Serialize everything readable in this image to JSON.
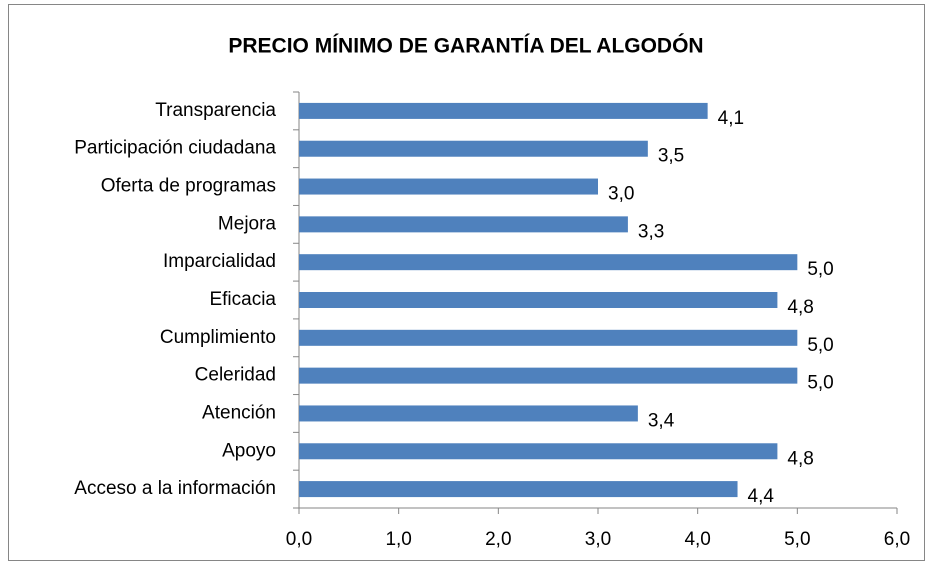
{
  "chart_data": {
    "type": "hbar",
    "title": "PRECIO MÍNIMO DE GARANTÍA  DEL ALGODÓN",
    "categories": [
      "Transparencia",
      "Participación ciudadana",
      "Oferta de programas",
      "Mejora",
      "Imparcialidad",
      "Eficacia",
      "Cumplimiento",
      "Celeridad",
      "Atención",
      "Apoyo",
      "Acceso a la información"
    ],
    "values": [
      4.1,
      3.5,
      3.0,
      3.3,
      5.0,
      4.8,
      5.0,
      5.0,
      3.4,
      4.8,
      4.4
    ],
    "value_labels": [
      "4,1",
      "3,5",
      "3,0",
      "3,3",
      "5,0",
      "4,8",
      "5,0",
      "5,0",
      "3,4",
      "4,8",
      "4,4"
    ],
    "color": "#4f81bd",
    "xlim": [
      0,
      6
    ],
    "xticks": [
      {
        "value": 0,
        "label": "0,0"
      },
      {
        "value": 1,
        "label": "1,0"
      },
      {
        "value": 2,
        "label": "2,0"
      },
      {
        "value": 3,
        "label": "3,0"
      },
      {
        "value": 4,
        "label": "4,0"
      },
      {
        "value": 5,
        "label": "5,0"
      },
      {
        "value": 6,
        "label": "6,0"
      }
    ],
    "grid": false
  }
}
